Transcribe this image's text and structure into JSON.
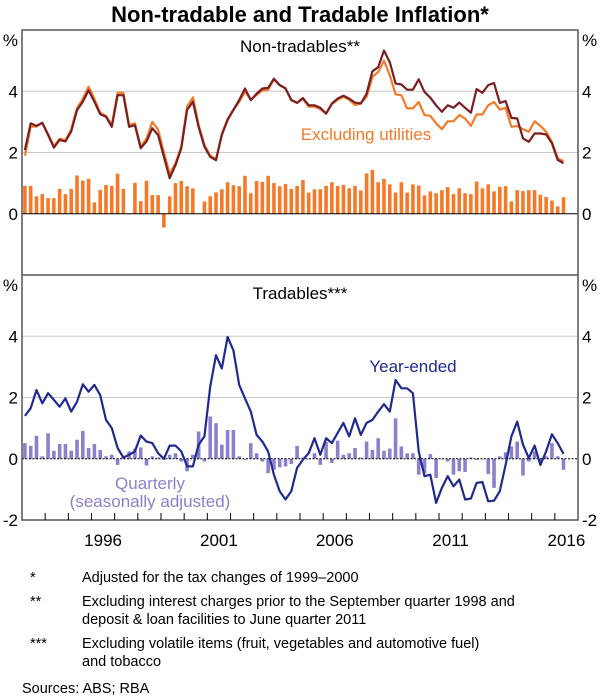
{
  "title": "Non-tradable and Tradable Inflation*",
  "colors": {
    "non_tradables": "#7a1e22",
    "excluding_utilities": "#f47a2a",
    "non_tradables_quarterly": "#f47a2a",
    "tradables_year_ended": "#1f2a8f",
    "tradables_quarterly": "#8b80cc",
    "grid": "#c8c8c8"
  },
  "chart_data": [
    {
      "type": "line+bar",
      "panel_title": "Non-tradables**",
      "ylabel": "%",
      "ylim": [
        -2,
        6
      ],
      "yticks": [
        "0",
        "2",
        "4"
      ],
      "grid": true,
      "annotations": [
        "Excluding utilities"
      ],
      "series": [
        {
          "kind": "line",
          "color_key": "non_tradables",
          "values": [
            2.08,
            2.95,
            2.87,
            2.97,
            2.57,
            2.16,
            2.41,
            2.36,
            2.69,
            3.38,
            3.66,
            4.03,
            3.66,
            3.25,
            3.17,
            2.84,
            3.87,
            3.87,
            2.84,
            2.89,
            2.14,
            2.36,
            2.79,
            2.57,
            1.86,
            1.16,
            1.59,
            2.14,
            3.39,
            3.66,
            2.84,
            2.19,
            1.86,
            1.75,
            2.57,
            3.06,
            3.39,
            3.71,
            4.09,
            3.71,
            3.92,
            4.09,
            4.11,
            4.41,
            4.2,
            4.09,
            3.71,
            3.62,
            3.78,
            3.54,
            3.54,
            3.46,
            3.27,
            3.6,
            3.76,
            3.85,
            3.76,
            3.63,
            3.6,
            3.92,
            4.65,
            4.79,
            5.33,
            4.95,
            4.25,
            4.22,
            4.05,
            4.05,
            4.39,
            3.98,
            3.79,
            3.54,
            3.33,
            3.54,
            3.46,
            3.63,
            3.46,
            3.3,
            4.07,
            3.95,
            4.2,
            4.27,
            3.62,
            3.68,
            3.13,
            3.11,
            2.46,
            2.35,
            2.62,
            2.62,
            2.59,
            2.3,
            1.76,
            1.65
          ]
        },
        {
          "kind": "line",
          "name": "Excluding utilities",
          "color_key": "excluding_utilities",
          "values": [
            1.9,
            2.85,
            2.85,
            2.97,
            2.6,
            2.2,
            2.45,
            2.4,
            2.75,
            3.45,
            3.75,
            4.15,
            3.75,
            3.3,
            3.2,
            2.9,
            3.95,
            3.95,
            2.9,
            2.95,
            2.2,
            2.45,
            3.0,
            2.75,
            2.0,
            1.3,
            1.65,
            2.2,
            3.5,
            3.8,
            2.9,
            2.25,
            1.9,
            1.78,
            2.6,
            3.1,
            3.4,
            3.65,
            4.0,
            3.72,
            3.88,
            4.02,
            4.05,
            4.38,
            4.2,
            4.1,
            3.72,
            3.62,
            3.75,
            3.5,
            3.5,
            3.42,
            3.27,
            3.58,
            3.72,
            3.82,
            3.72,
            3.55,
            3.6,
            3.82,
            4.47,
            4.63,
            5.0,
            4.52,
            3.9,
            3.87,
            3.44,
            3.44,
            3.65,
            3.22,
            3.2,
            2.95,
            2.76,
            3.02,
            3.02,
            3.22,
            3.11,
            2.87,
            3.24,
            3.24,
            3.54,
            3.65,
            3.4,
            3.46,
            2.84,
            2.87,
            2.76,
            2.68,
            3.02,
            2.87,
            2.68,
            2.35,
            1.81,
            1.72
          ]
        },
        {
          "kind": "bar",
          "color_key": "non_tradables_quarterly",
          "values": [
            0.91,
            0.91,
            0.57,
            0.64,
            0.51,
            0.51,
            0.81,
            0.64,
            0.81,
            1.25,
            1.08,
            1.14,
            0.37,
            0.78,
            0.94,
            0.91,
            1.31,
            0.81,
            -0.02,
            1.01,
            0.41,
            1.08,
            0.61,
            0.61,
            -0.45,
            0.57,
            1.0,
            1.07,
            0.9,
            0.83,
            null,
            0.4,
            0.57,
            0.7,
            0.8,
            1.03,
            0.93,
            0.9,
            1.24,
            0.67,
            1.07,
            1.04,
            1.24,
            1.0,
            0.9,
            0.97,
            0.81,
            0.91,
            1.1,
            0.69,
            0.8,
            0.8,
            0.91,
            1.03,
            0.91,
            0.94,
            0.83,
            0.91,
            0.76,
            1.32,
            1.43,
            1.03,
            1.14,
            0.96,
            0.69,
            1.03,
            0.69,
            0.96,
            0.92,
            0.6,
            0.73,
            0.67,
            0.77,
            0.87,
            0.64,
            0.83,
            0.67,
            0.64,
            1.05,
            0.83,
            0.96,
            0.73,
            0.88,
            0.9,
            0.4,
            0.77,
            0.74,
            0.77,
            0.77,
            0.62,
            0.55,
            0.43,
            0.24,
            0.54
          ]
        }
      ]
    },
    {
      "type": "line+bar",
      "panel_title": "Tradables***",
      "ylabel": "%",
      "ylim": [
        -2,
        6
      ],
      "yticks": [
        "-2",
        "0",
        "2",
        "4"
      ],
      "grid": true,
      "annotations": [
        "Year-ended",
        "Quarterly",
        "(seasonally adjusted)"
      ],
      "series": [
        {
          "kind": "line",
          "name": "Year-ended",
          "color_key": "tradables_year_ended",
          "values": [
            1.4,
            1.65,
            2.24,
            1.81,
            2.14,
            1.92,
            1.7,
            1.97,
            1.54,
            1.86,
            2.43,
            2.19,
            2.41,
            2.08,
            1.27,
            1.0,
            0.35,
            0.04,
            0.13,
            0.24,
            0.76,
            0.56,
            0.51,
            0.18,
            0.0,
            0.43,
            0.43,
            0.24,
            -0.25,
            -0.25,
            0.46,
            0.73,
            2.35,
            3.38,
            2.95,
            3.98,
            3.54,
            2.41,
            1.97,
            1.54,
            0.78,
            0.56,
            0.24,
            -0.52,
            -1.06,
            -1.33,
            -1.06,
            -0.3,
            -0.03,
            0.18,
            0.67,
            0.13,
            0.67,
            0.51,
            0.84,
            1.17,
            0.73,
            1.32,
            0.78,
            1.17,
            1.27,
            1.54,
            1.78,
            1.54,
            2.57,
            2.3,
            2.3,
            2.14,
            0.24,
            -0.57,
            -0.52,
            -1.44,
            -0.95,
            -0.57,
            -0.9,
            -0.68,
            -1.33,
            -1.3,
            -0.79,
            -0.76,
            -1.39,
            -1.37,
            -1.06,
            -0.2,
            0.73,
            1.21,
            0.46,
            0.02,
            0.43,
            -0.2,
            0.24,
            0.8,
            0.51,
            0.16
          ]
        },
        {
          "kind": "bar",
          "name": "Quarterly (seasonally adjusted)",
          "color_key": "tradables_quarterly",
          "values": [
            0.51,
            0.42,
            0.75,
            0.08,
            0.83,
            0.26,
            0.48,
            0.48,
            0.26,
            0.62,
            0.91,
            0.35,
            0.48,
            0.29,
            0.08,
            0.13,
            -0.2,
            0.08,
            0.24,
            0.33,
            0.37,
            -0.22,
            0.08,
            0.04,
            0,
            0.13,
            0.18,
            -0.09,
            -0.41,
            0.13,
            0.89,
            -0.09,
            1.38,
            1.16,
            0.46,
            0.94,
            0.94,
            0.08,
            -0.03,
            0.51,
            0.18,
            -0.09,
            -0.47,
            -0.36,
            -0.28,
            -0.25,
            -0.17,
            0.42,
            0.04,
            -0.01,
            0.18,
            -0.2,
            0.56,
            -0.14,
            0.59,
            0.13,
            0.18,
            0.35,
            0.04,
            0.56,
            0.29,
            0.67,
            0.26,
            0.33,
            1.32,
            0.4,
            0.18,
            0.18,
            -0.52,
            -0.47,
            0.15,
            -0.63,
            -0.01,
            -0.09,
            -0.52,
            -0.41,
            -0.43,
            0.04,
            -0.04,
            -0.01,
            -0.5,
            -0.95,
            0.08,
            0.21,
            0.4,
            0.56,
            -0.55,
            -0.09,
            0.24,
            -0.14,
            0.08,
            0.51,
            0.08,
            -0.36
          ]
        }
      ]
    }
  ],
  "x_axis": {
    "frequency": "quarterly",
    "first_quarter": "1993Q1",
    "last_quarter": "2016Q2",
    "range_years": [
      1993,
      2017
    ],
    "tick_labels": [
      "1996",
      "2001",
      "2006",
      "2011",
      "2016"
    ]
  },
  "footnotes": [
    {
      "mark": "*",
      "lines": [
        "Adjusted for the tax changes of 1999–2000"
      ]
    },
    {
      "mark": "**",
      "lines": [
        "Excluding interest charges prior to the September quarter 1998 and",
        "deposit & loan facilities to June quarter 2011"
      ]
    },
    {
      "mark": "***",
      "lines": [
        "Excluding volatile items (fruit, vegetables and automotive fuel)",
        "and tobacco"
      ]
    }
  ],
  "sources": "Sources:  ABS; RBA"
}
